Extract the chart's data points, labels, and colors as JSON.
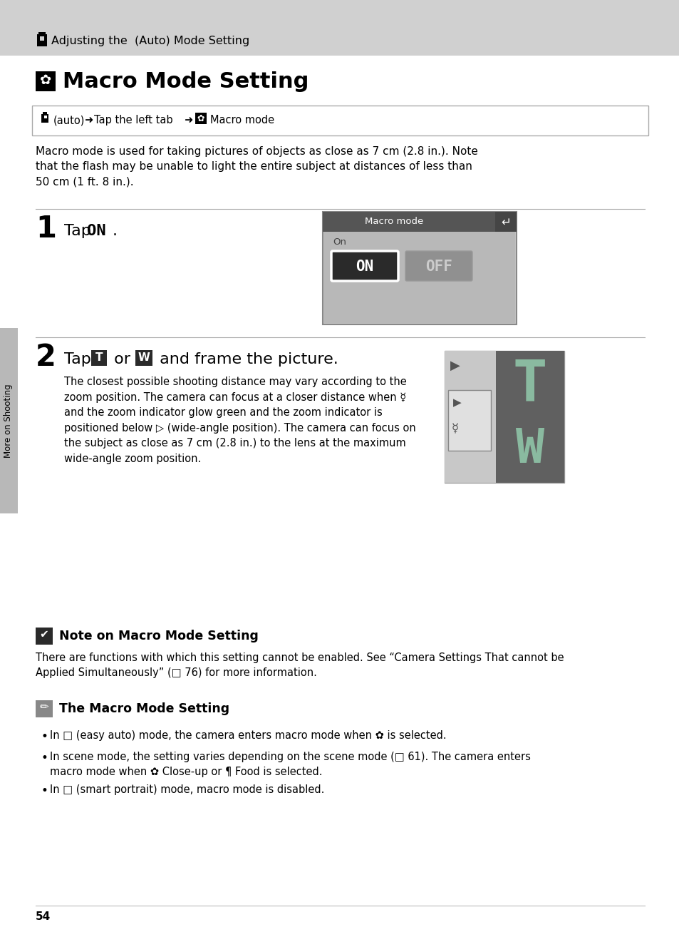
{
  "bg_color": "#ffffff",
  "header_bg": "#d0d0d0",
  "page_number": "54",
  "sidebar_color": "#b8b8b8",
  "header_text": "Adjusting the  (Auto) Mode Setting",
  "title_text": "Macro Mode Setting",
  "desc_text": "Macro mode is used for taking pictures of objects as close as 7 cm (2.8 in.). Note\nthat the flash may be unable to light the entire subject at distances of less than\n50 cm (1 ft. 8 in.).",
  "step1_num": "1",
  "step2_num": "2",
  "step2_text": " and frame the picture.",
  "step2_body": "The closest possible shooting distance may vary according to the\nzoom position. The camera can focus at a closer distance when ☿\nand the zoom indicator glow green and the zoom indicator is\npositioned below ▷ (wide-angle position). The camera can focus on\nthe subject as close as 7 cm (2.8 in.) to the lens at the maximum\nwide-angle zoom position.",
  "screen_title": "Macro mode",
  "screen_on_label": "On",
  "screen_on_btn": "ON",
  "screen_off_btn": "OFF",
  "note_title": "Note on Macro Mode Setting",
  "note_body": "There are functions with which this setting cannot be enabled. See “Camera Settings That cannot be\nApplied Simultaneously” (□ 76) for more information.",
  "pencil_title": "The Macro Mode Setting",
  "bullet1": "In □ (easy auto) mode, the camera enters macro mode when ✿ is selected.",
  "bullet2_l1": "In scene mode, the setting varies depending on the scene mode (□ 61). The camera enters",
  "bullet2_l2": "macro mode when ✿ Close-up or ¶ Food is selected.",
  "bullet3": "In □ (smart portrait) mode, macro mode is disabled.",
  "sidebar_text": "More on Shooting",
  "arrow": "➜",
  "back_arrow": "↵",
  "check": "✔",
  "pencil": "✏",
  "bullet": "•",
  "right_tri": "▶",
  "flower": "✿",
  "macro_icon": "☿"
}
